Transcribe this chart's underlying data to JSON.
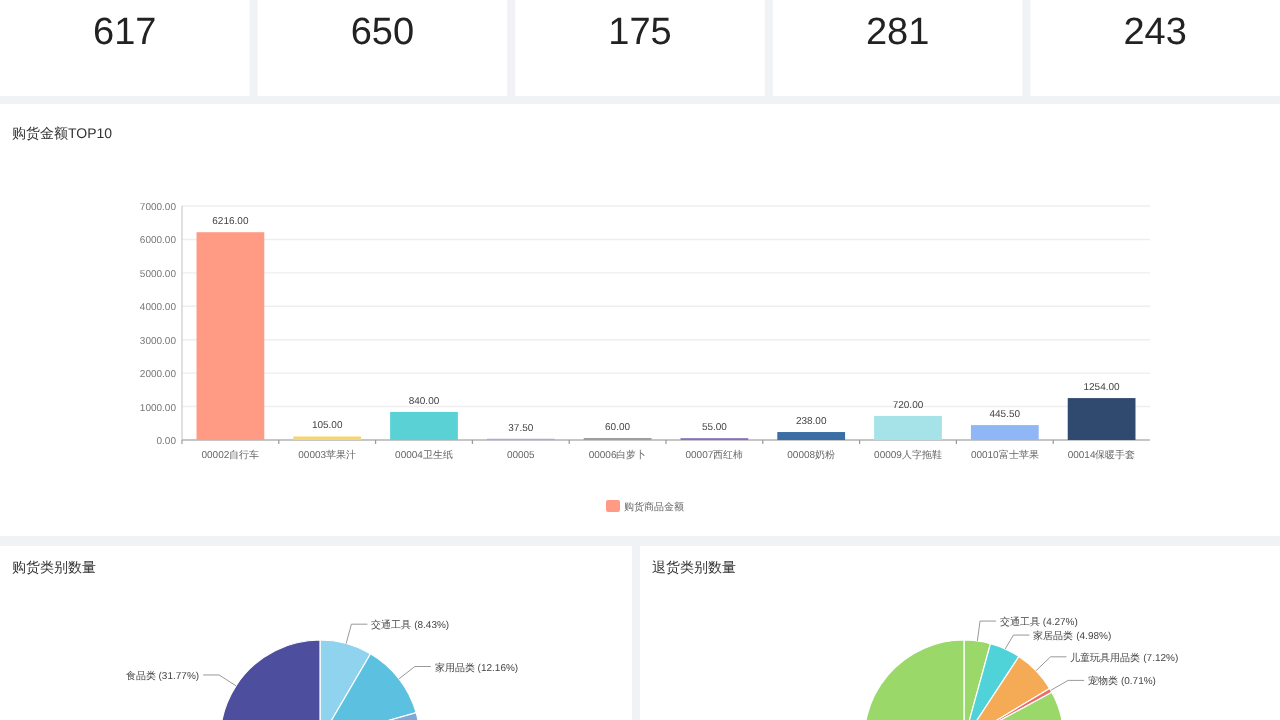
{
  "chart_data": [
    {
      "type": "other",
      "annotations": [
        "617",
        "650",
        "175",
        "281",
        "243"
      ]
    },
    {
      "type": "bar",
      "title": "购货金额TOP10",
      "categories": [
        "00002自行车",
        "00003苹果汁",
        "00004卫生纸",
        "00005",
        "00006白萝卜",
        "00007西红柿",
        "00008奶粉",
        "00009人字拖鞋",
        "00010富士苹果",
        "00014保暖手套"
      ],
      "series": [
        {
          "name": "购货商品金额",
          "color": "#ff9b85",
          "colors": [
            "#ff9b85",
            "#f5d76e",
            "#5ad1d4",
            "#a9a9e8",
            "#9e9e9e",
            "#8a6fc0",
            "#3a6ea5",
            "#a6e3e9",
            "#8fb6f5",
            "#2f4a6e"
          ],
          "values": [
            6216,
            105,
            840,
            37.5,
            60,
            55,
            238,
            720,
            445.5,
            1254
          ],
          "value_labels": [
            "6216.00",
            "105.00",
            "840.00",
            "37.50",
            "60.00",
            "55.00",
            "238.00",
            "720.00",
            "445.50",
            "1254.00"
          ]
        }
      ],
      "ylim": [
        0,
        7000
      ],
      "yticks": [
        {
          "value": 0,
          "label": "0.00"
        },
        {
          "value": 1000,
          "label": "1000.00"
        },
        {
          "value": 2000,
          "label": "2000.00"
        },
        {
          "value": 3000,
          "label": "3000.00"
        },
        {
          "value": 4000,
          "label": "4000.00"
        },
        {
          "value": 5000,
          "label": "5000.00"
        },
        {
          "value": 6000,
          "label": "6000.00"
        },
        {
          "value": 7000,
          "label": "7000.00"
        }
      ],
      "grid": "y",
      "legend": "bottom"
    },
    {
      "type": "pie",
      "title": "购货类别数量",
      "categories": [
        "交通工具",
        "家用品类",
        null,
        "食品类"
      ],
      "values": [
        8.43,
        12.16,
        47.64,
        31.77
      ],
      "value_labels": [
        "(8.43%)",
        "(12.16%)",
        null,
        "(31.77%)"
      ],
      "colors": [
        "#8fd3ee",
        "#5cc0e0",
        "#7fa8d8",
        "#4e4e9e"
      ]
    },
    {
      "type": "pie",
      "title": "退货类别数量",
      "categories": [
        "交通工具",
        "家居品类",
        "儿童玩具用品类",
        "宠物类",
        null
      ],
      "values": [
        4.27,
        4.98,
        7.12,
        0.71,
        82.92
      ],
      "value_labels": [
        "(4.27%)",
        "(4.98%)",
        "(7.12%)",
        "(0.71%)",
        null
      ],
      "colors": [
        "#9bd86a",
        "#4fd3d9",
        "#f5ab55",
        "#f06a6a",
        "#9bd86a"
      ]
    }
  ]
}
